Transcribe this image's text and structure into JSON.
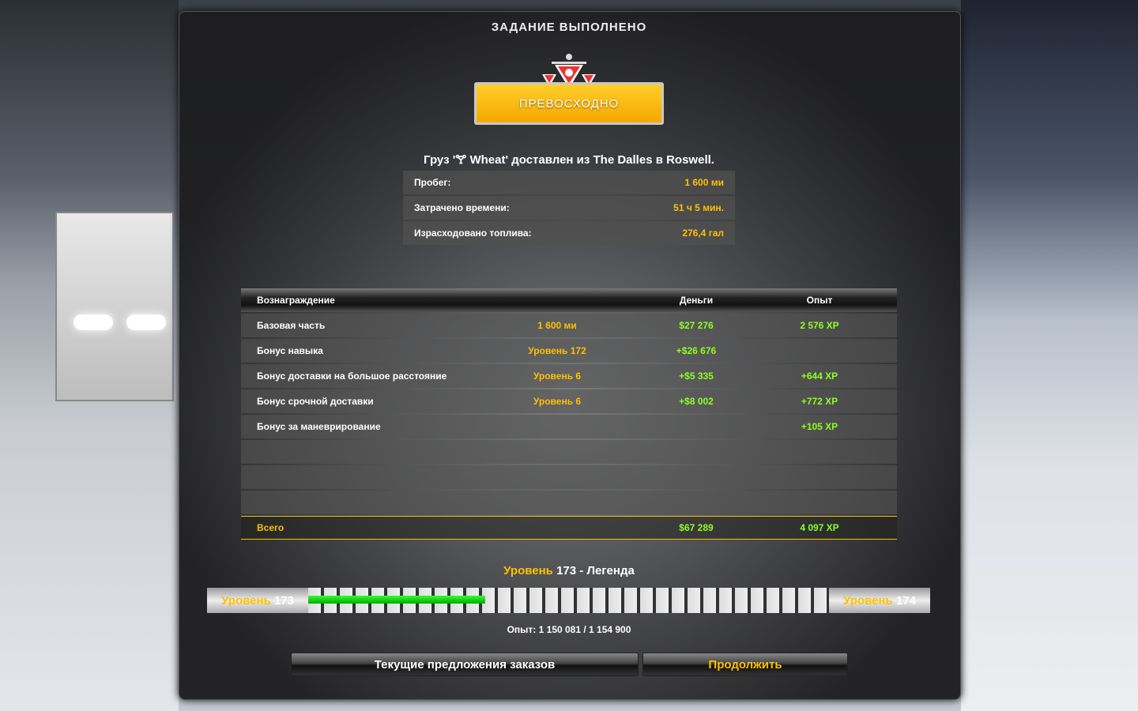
{
  "title": "ЗАДАНИЕ ВЫПОЛНЕНО",
  "rating": "ПРЕВОСХОДНО",
  "cargo_message": {
    "prefix": "Груз '",
    "cargo": "Wheat",
    "suffix": "' доставлен из The Dalles в Roswell."
  },
  "stats": [
    {
      "label": "Пробег:",
      "value": "1 600 ми"
    },
    {
      "label": "Затрачено времени:",
      "value": "51 ч 5 мин."
    },
    {
      "label": "Израсходовано топлива:",
      "value": "276,4 гал"
    }
  ],
  "rewards": {
    "headers": [
      "Вознаграждение",
      "",
      "Деньги",
      "Опыт"
    ],
    "rows": [
      {
        "name": "Базовая часть",
        "detail": "1 600 ми",
        "money": "$27 276",
        "xp": "2 576 XP"
      },
      {
        "name": "Бонус навыка",
        "detail": "Уровень 172",
        "money": "+$26 676",
        "xp": ""
      },
      {
        "name": "Бонус доставки на большое расстояние",
        "detail": "Уровень 6",
        "money": "+$5 335",
        "xp": "+644 XP"
      },
      {
        "name": "Бонус срочной доставки",
        "detail": "Уровень 6",
        "money": "+$8 002",
        "xp": "+772 XP"
      },
      {
        "name": "Бонус за маневрирование",
        "detail": "",
        "money": "",
        "xp": "+105 XP"
      }
    ],
    "total": {
      "label": "Всего",
      "money": "$67 289",
      "xp": "4 097 XP"
    }
  },
  "level": {
    "word": "Уровень",
    "number": "173",
    "rank": " - Легенда",
    "current": "173",
    "next": "174",
    "progress_fraction": 0.34
  },
  "experience": "Опыт: 1 150 081 / 1 154 900",
  "buttons": {
    "offers": "Текущие предложения заказов",
    "continue": "Продолжить"
  },
  "colors": {
    "accent": "#ffc000",
    "positive": "#8cff20",
    "progress": "#00cc00"
  }
}
